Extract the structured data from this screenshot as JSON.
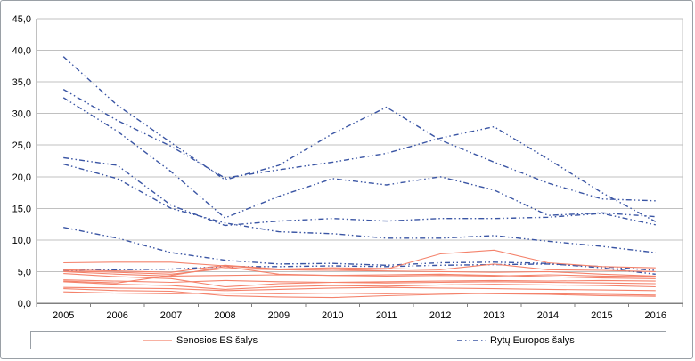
{
  "chart_data": {
    "type": "line",
    "title": "",
    "categories": [
      "2005",
      "2006",
      "2007",
      "2008",
      "2009",
      "2010",
      "2011",
      "2012",
      "2013",
      "2014",
      "2015",
      "2016"
    ],
    "y_axis": {
      "min": 0,
      "max": 45,
      "step": 5,
      "tick_labels": [
        "0,0",
        "5,0",
        "10,0",
        "15,0",
        "20,0",
        "25,0",
        "30,0",
        "35,0",
        "40,0",
        "45,0"
      ],
      "decimal_separator": "comma",
      "grid": true
    },
    "legend": {
      "position": "bottom",
      "items": [
        {
          "label": "Senosios ES šalys",
          "color": "#F4826B",
          "style": "solid"
        },
        {
          "label": "Rytų Europos šalys",
          "color": "#3A55A4",
          "style": "dash-dot-dot"
        }
      ]
    },
    "series": [
      {
        "group": "rytu_europos",
        "values": [
          39.0,
          31.3,
          25.4,
          19.5,
          21.8,
          26.8,
          31.0,
          25.8,
          22.3,
          19.0,
          16.5,
          16.2
        ]
      },
      {
        "group": "rytu_europos",
        "values": [
          33.8,
          28.9,
          24.8,
          19.8,
          21.1,
          22.3,
          23.7,
          26.1,
          27.9,
          22.8,
          17.5,
          12.9
        ]
      },
      {
        "group": "rytu_europos",
        "values": [
          32.5,
          27.2,
          20.8,
          13.5,
          16.9,
          19.7,
          18.7,
          20.0,
          17.9,
          13.9,
          14.3,
          13.7
        ]
      },
      {
        "group": "rytu_europos",
        "values": [
          23.0,
          21.8,
          15.5,
          12.3,
          13.0,
          13.4,
          13.0,
          13.4,
          13.4,
          13.6,
          14.2,
          12.4
        ]
      },
      {
        "group": "rytu_europos",
        "values": [
          22.0,
          19.7,
          15.0,
          12.7,
          11.3,
          11.0,
          10.3,
          10.3,
          10.7,
          9.8,
          9.0,
          8.0
        ]
      },
      {
        "group": "rytu_europos",
        "values": [
          12.0,
          10.3,
          8.0,
          6.8,
          6.2,
          6.3,
          6.0,
          6.4,
          6.5,
          6.3,
          5.6,
          4.6
        ]
      },
      {
        "group": "rytu_europos",
        "values": [
          5.2,
          5.3,
          5.4,
          5.8,
          5.8,
          5.9,
          5.8,
          6.0,
          6.1,
          6.2,
          5.8,
          5.2
        ]
      },
      {
        "group": "senosios_es",
        "values": [
          6.4,
          6.5,
          6.5,
          5.9,
          5.3,
          5.2,
          5.4,
          7.8,
          8.4,
          6.4,
          5.8,
          5.6
        ]
      },
      {
        "group": "senosios_es",
        "values": [
          5.3,
          5.1,
          4.9,
          6.0,
          5.4,
          5.6,
          5.5,
          5.3,
          6.2,
          5.3,
          5.2,
          5.0
        ]
      },
      {
        "group": "senosios_es",
        "values": [
          5.1,
          4.9,
          4.6,
          5.5,
          5.3,
          5.2,
          5.1,
          5.0,
          4.9,
          5.0,
          4.6,
          4.3
        ]
      },
      {
        "group": "senosios_es",
        "values": [
          5.0,
          4.6,
          4.3,
          4.4,
          4.5,
          4.4,
          4.3,
          4.4,
          4.3,
          4.5,
          4.3,
          4.2
        ]
      },
      {
        "group": "senosios_es",
        "values": [
          4.7,
          4.2,
          3.9,
          2.6,
          3.1,
          3.3,
          3.4,
          3.5,
          3.6,
          3.5,
          3.6,
          3.5
        ]
      },
      {
        "group": "senosios_es",
        "values": [
          3.7,
          3.5,
          3.3,
          3.6,
          3.4,
          3.3,
          3.2,
          3.3,
          3.4,
          3.3,
          3.2,
          3.1
        ]
      },
      {
        "group": "senosios_es",
        "values": [
          3.5,
          3.2,
          4.4,
          5.8,
          4.6,
          4.4,
          4.5,
          4.6,
          4.4,
          4.2,
          4.0,
          3.9
        ]
      },
      {
        "group": "senosios_es",
        "values": [
          3.4,
          3.0,
          2.8,
          2.2,
          2.6,
          2.8,
          2.7,
          2.9,
          3.0,
          2.9,
          2.8,
          2.6
        ]
      },
      {
        "group": "senosios_es",
        "values": [
          2.5,
          2.4,
          2.3,
          2.0,
          2.2,
          2.4,
          2.5,
          2.4,
          2.3,
          2.2,
          2.1,
          2.0
        ]
      },
      {
        "group": "senosios_es",
        "values": [
          2.3,
          2.0,
          1.9,
          1.2,
          1.0,
          0.9,
          1.2,
          1.4,
          1.6,
          1.5,
          1.4,
          1.3
        ]
      },
      {
        "group": "senosios_es",
        "values": [
          1.8,
          1.6,
          1.5,
          1.6,
          1.5,
          1.6,
          1.5,
          1.6,
          1.5,
          1.4,
          1.2,
          1.1
        ]
      }
    ]
  },
  "colors": {
    "senosios_es": "#F4826B",
    "rytu_europos": "#3A55A4",
    "gridline": "#C0C0C0",
    "axis": "#808080",
    "plot_border": "#C0C0C0",
    "text": "#000000"
  }
}
